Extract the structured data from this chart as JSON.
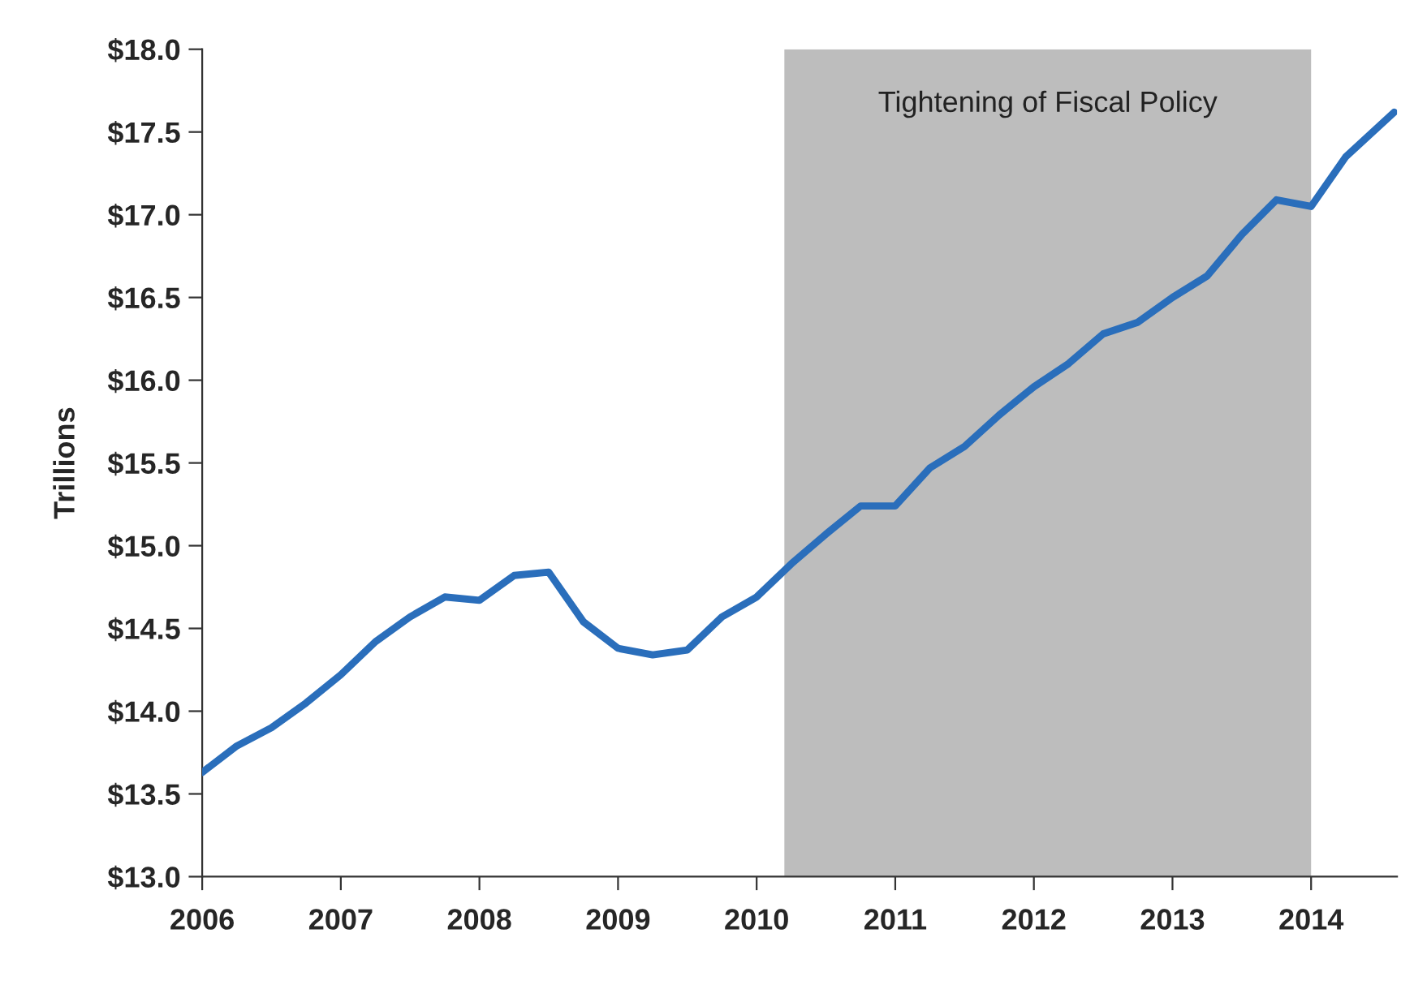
{
  "chart_data": {
    "type": "line",
    "ylabel": "Trillions",
    "x": [
      2006.0,
      2006.25,
      2006.5,
      2006.75,
      2007.0,
      2007.25,
      2007.5,
      2007.75,
      2008.0,
      2008.25,
      2008.5,
      2008.75,
      2009.0,
      2009.25,
      2009.5,
      2009.75,
      2010.0,
      2010.25,
      2010.5,
      2010.75,
      2011.0,
      2011.25,
      2011.5,
      2011.75,
      2012.0,
      2012.25,
      2012.5,
      2012.75,
      2013.0,
      2013.25,
      2013.5,
      2013.75,
      2014.0,
      2014.25,
      2014.6
    ],
    "series": [
      {
        "color": "#2a6ebb",
        "values": [
          13.63,
          13.79,
          13.9,
          14.05,
          14.22,
          14.42,
          14.57,
          14.69,
          14.67,
          14.82,
          14.84,
          14.54,
          14.38,
          14.34,
          14.37,
          14.57,
          14.69,
          14.89,
          15.07,
          15.24,
          15.24,
          15.47,
          15.6,
          15.79,
          15.96,
          16.1,
          16.28,
          16.35,
          16.5,
          16.63,
          16.88,
          17.09,
          17.05,
          17.35,
          17.62
        ]
      }
    ],
    "xlim": [
      2006,
      2014.62
    ],
    "ylim": [
      13.0,
      18.0
    ],
    "xticks": [
      2006,
      2007,
      2008,
      2009,
      2010,
      2011,
      2012,
      2013,
      2014
    ],
    "yticks": [
      {
        "value": 13.0,
        "label": "$13.0"
      },
      {
        "value": 13.5,
        "label": "$13.5"
      },
      {
        "value": 14.0,
        "label": "$14.0"
      },
      {
        "value": 14.5,
        "label": "$14.5"
      },
      {
        "value": 15.0,
        "label": "$15.0"
      },
      {
        "value": 15.5,
        "label": "$15.5"
      },
      {
        "value": 16.0,
        "label": "$16.0"
      },
      {
        "value": 16.5,
        "label": "$16.5"
      },
      {
        "value": 17.0,
        "label": "$17.0"
      },
      {
        "value": 17.5,
        "label": "$17.5"
      },
      {
        "value": 18.0,
        "label": "$18.0"
      }
    ],
    "bands": [
      {
        "axis": "x",
        "from": 2010.2,
        "to": 2014.0,
        "label": "Tightening of Fiscal Policy",
        "color": "#bdbdbd"
      }
    ],
    "grid": false,
    "line_style": "solid",
    "marker": "none"
  }
}
